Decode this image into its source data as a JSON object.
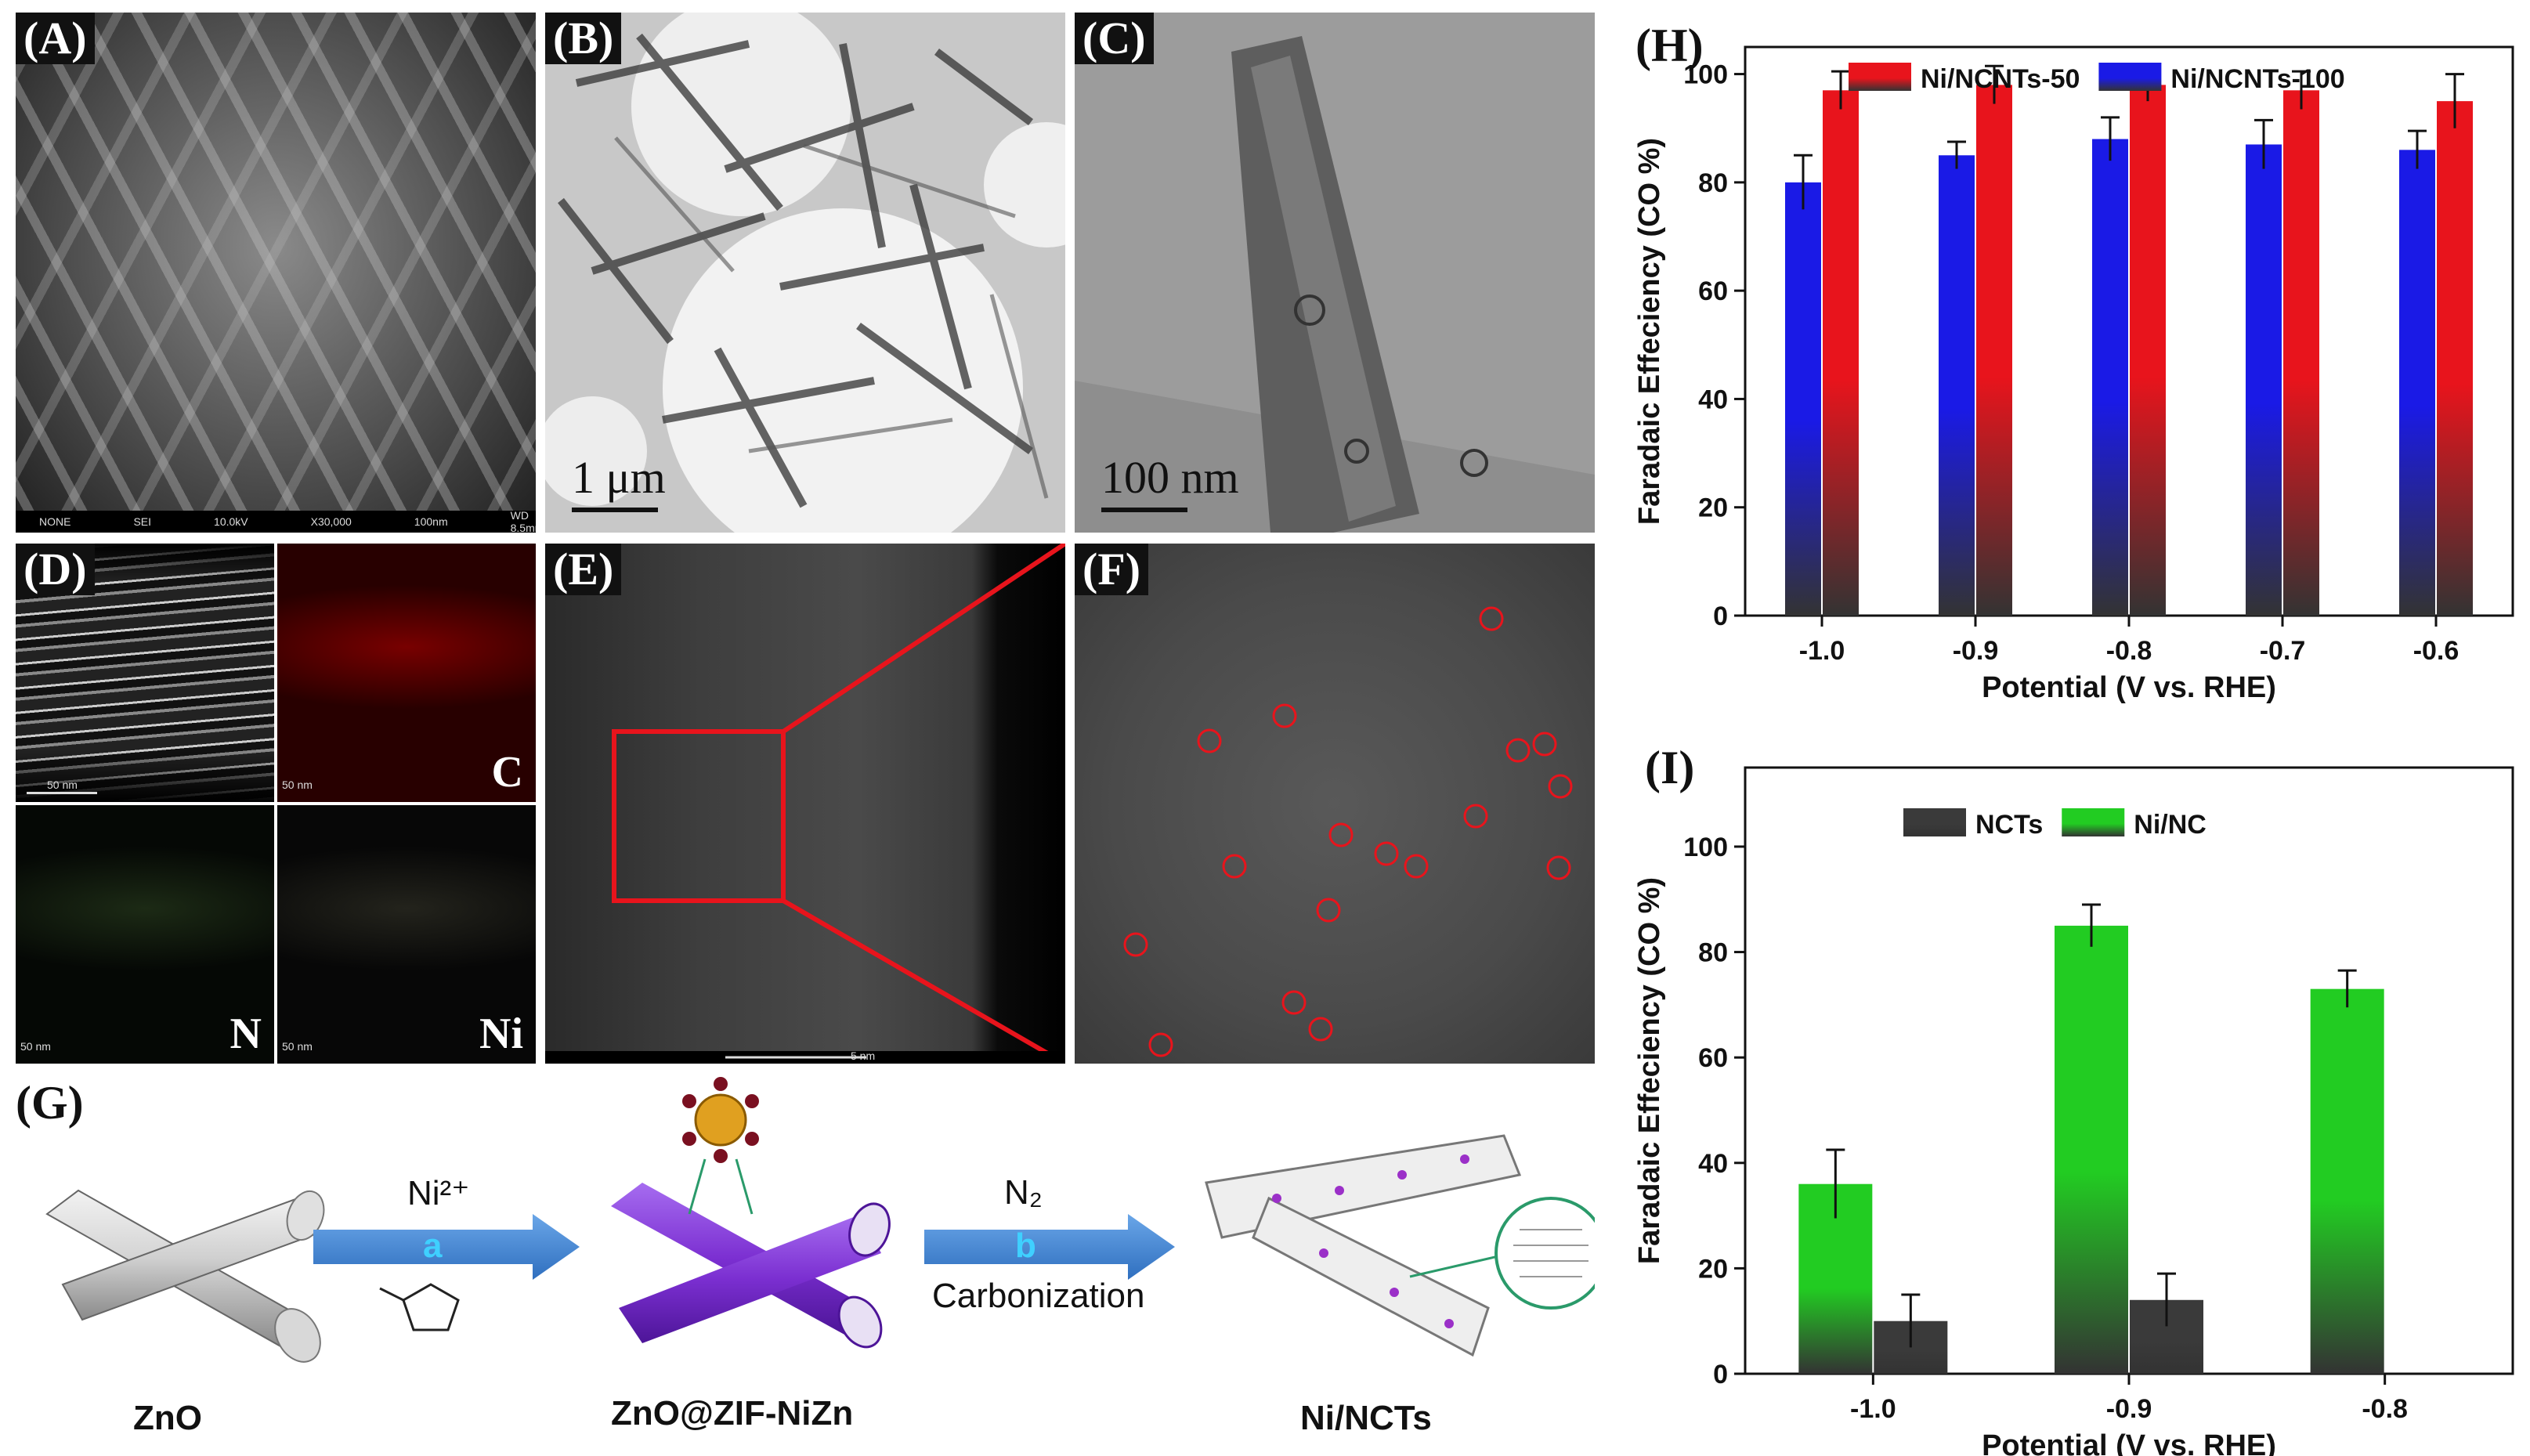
{
  "panels": {
    "A": {
      "label": "(A)",
      "sem_bar": [
        "NONE",
        "SEI",
        "10.0kV",
        "X30,000",
        "100nm",
        "WD 8.5mm"
      ]
    },
    "B": {
      "label": "(B)",
      "scale": "1 μm"
    },
    "C": {
      "label": "(C)",
      "scale": "100 nm"
    },
    "D": {
      "label": "(D)",
      "elements": [
        "C",
        "N",
        "Ni"
      ],
      "small_scale": "50 nm"
    },
    "E": {
      "label": "(E)",
      "small_scale": "5 nm"
    },
    "F": {
      "label": "(F)"
    },
    "G": {
      "label": "(G)",
      "zno": "ZnO",
      "step_a_top": "Ni²⁺",
      "step_a_letter": "a",
      "zif": "ZnO@ZIF-NiZn",
      "step_b_top": "N₂",
      "step_b_letter": "b",
      "step_b_bottom": "Carbonization",
      "product": "Ni/NCTs"
    },
    "H": {
      "label": "(H)"
    },
    "I": {
      "label": "(I)"
    }
  },
  "chart_data": [
    {
      "type": "bar",
      "panel": "H",
      "categories": [
        "-1.0",
        "-0.9",
        "-0.8",
        "-0.7",
        "-0.6"
      ],
      "series": [
        {
          "name": "Ni/NCNTs-50",
          "values": [
            97,
            98,
            98,
            97,
            95
          ],
          "errors": [
            3.5,
            3.5,
            3,
            3.5,
            5
          ],
          "color": "#e8141c"
        },
        {
          "name": "Ni/NCNTs-100",
          "values": [
            80,
            85,
            88,
            87,
            86
          ],
          "errors": [
            5,
            2.5,
            4,
            4.5,
            3.5
          ],
          "color": "#1a1ae6"
        }
      ],
      "xlabel": "Potential (V vs. RHE)",
      "ylabel": "Faradaic Effeciency (CO %)",
      "yticks": [
        0,
        20,
        40,
        60,
        80,
        100
      ],
      "ylim": [
        0,
        105
      ],
      "legend": "top"
    },
    {
      "type": "bar",
      "panel": "I",
      "categories": [
        "-1.0",
        "-0.9",
        "-0.8"
      ],
      "series": [
        {
          "name": "NCTs",
          "values": [
            10,
            14,
            0
          ],
          "errors": [
            5,
            5,
            0
          ],
          "color": "#3a3a3a"
        },
        {
          "name": "Ni/NC",
          "values": [
            36,
            85,
            73
          ],
          "errors": [
            6.5,
            4,
            3.5
          ],
          "color": "#22cc22"
        }
      ],
      "xlabel": "Potential (V vs. RHE)",
      "ylabel": "Faradaic Effeciency (CO %)",
      "yticks": [
        0,
        20,
        40,
        60,
        80,
        100
      ],
      "ylim": [
        0,
        115
      ],
      "legend": "top"
    }
  ],
  "colors": {
    "accent_red": "#e8141c",
    "zif_purple": "#7b2fd1",
    "arrow_blue": "#2f6fbf"
  }
}
